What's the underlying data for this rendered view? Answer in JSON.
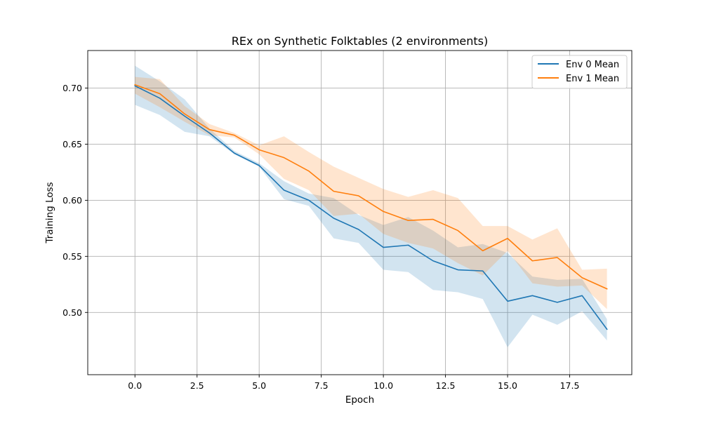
{
  "chart_data": {
    "type": "line",
    "title": "REx on Synthetic Folktables (2 environments)",
    "xlabel": "Epoch",
    "ylabel": "Training Loss",
    "xlim": [
      -1.9,
      20.0
    ],
    "ylim": [
      0.4445,
      0.7335
    ],
    "xticks": [
      0.0,
      2.5,
      5.0,
      7.5,
      10.0,
      12.5,
      15.0,
      17.5
    ],
    "xtick_labels": [
      "0.0",
      "2.5",
      "5.0",
      "7.5",
      "10.0",
      "12.5",
      "15.0",
      "17.5"
    ],
    "yticks": [
      0.5,
      0.55,
      0.6,
      0.65,
      0.7
    ],
    "ytick_labels": [
      "0.50",
      "0.55",
      "0.60",
      "0.65",
      "0.70"
    ],
    "grid": true,
    "legend_position": "upper right",
    "x": [
      0,
      1,
      2,
      3,
      4,
      5,
      6,
      7,
      8,
      9,
      10,
      11,
      12,
      13,
      14,
      15,
      16,
      17,
      18,
      19
    ],
    "series": [
      {
        "name": "Env 0 Mean",
        "color": "#1f77b4",
        "band_color": "#1f77b4",
        "mean": [
          0.702,
          0.691,
          0.675,
          0.66,
          0.642,
          0.631,
          0.609,
          0.6,
          0.584,
          0.574,
          0.558,
          0.56,
          0.546,
          0.538,
          0.537,
          0.51,
          0.515,
          0.509,
          0.515,
          0.485
        ],
        "upper": [
          0.72,
          0.706,
          0.69,
          0.664,
          0.644,
          0.633,
          0.617,
          0.606,
          0.602,
          0.587,
          0.578,
          0.585,
          0.573,
          0.558,
          0.561,
          0.553,
          0.532,
          0.529,
          0.53,
          0.494
        ],
        "lower": [
          0.685,
          0.676,
          0.661,
          0.657,
          0.641,
          0.63,
          0.601,
          0.595,
          0.566,
          0.562,
          0.538,
          0.536,
          0.52,
          0.518,
          0.512,
          0.469,
          0.498,
          0.489,
          0.501,
          0.475
        ]
      },
      {
        "name": "Env 1 Mean",
        "color": "#ff7f0e",
        "band_color": "#ff7f0e",
        "mean": [
          0.703,
          0.695,
          0.677,
          0.663,
          0.658,
          0.645,
          0.638,
          0.626,
          0.608,
          0.604,
          0.59,
          0.582,
          0.583,
          0.573,
          0.555,
          0.566,
          0.546,
          0.549,
          0.531,
          0.521
        ],
        "upper": [
          0.71,
          0.708,
          0.684,
          0.668,
          0.66,
          0.649,
          0.657,
          0.643,
          0.63,
          0.62,
          0.61,
          0.603,
          0.609,
          0.602,
          0.577,
          0.577,
          0.565,
          0.575,
          0.538,
          0.539
        ],
        "lower": [
          0.695,
          0.683,
          0.67,
          0.658,
          0.656,
          0.641,
          0.619,
          0.609,
          0.586,
          0.588,
          0.57,
          0.562,
          0.557,
          0.544,
          0.533,
          0.555,
          0.526,
          0.523,
          0.524,
          0.503
        ]
      }
    ]
  }
}
